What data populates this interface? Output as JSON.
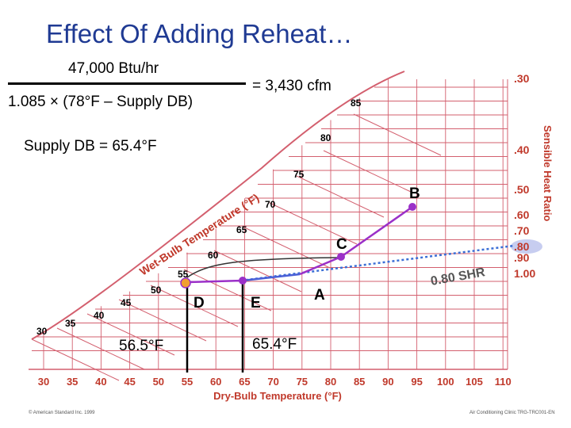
{
  "slide": {
    "title": "Effect Of Adding Reheat…",
    "numerator": "47,000 Btu/hr",
    "denominator": "1.085 × (78°F – Supply DB)",
    "result": "= 3,430 cfm",
    "supply_db": "Supply DB = 65.4°F"
  },
  "chart": {
    "db_axis_title": "Dry-Bulb Temperature (°F)",
    "db_ticks": [
      "30",
      "35",
      "40",
      "45",
      "50",
      "55",
      "60",
      "65",
      "70",
      "75",
      "80",
      "85",
      "90",
      "95",
      "100",
      "105",
      "110"
    ],
    "wb_title": "Wet-Bulb Temperature (°F)",
    "wb_labels": [
      "30",
      "35",
      "40",
      "45",
      "50",
      "55",
      "60",
      "65",
      "70",
      "75",
      "80",
      "85"
    ],
    "shr_title": "Sensible Heat Ratio",
    "shr_ticks": [
      ".30",
      ".40",
      ".50",
      ".60",
      ".70",
      ".80",
      ".90",
      "1.00"
    ],
    "shr_highlight": ".80",
    "points": [
      "A",
      "B",
      "C",
      "D",
      "E"
    ],
    "shr_line_label": "0.80 SHR",
    "db_marker_left": "56.5°F",
    "db_marker_right": "65.4°F"
  },
  "colors": {
    "title": "#1f3a93",
    "grid": "#d35f6e",
    "axis_labels": "#c0392b",
    "process": "#9b30c8",
    "reheat": "#4a5fd6",
    "shr_line": "#3b6fd6",
    "mixed_point": "#f0a030"
  },
  "footer": {
    "left": "© American Standard Inc. 1999",
    "right": "Air Conditioning Clinic TRG-TRC001-EN"
  }
}
